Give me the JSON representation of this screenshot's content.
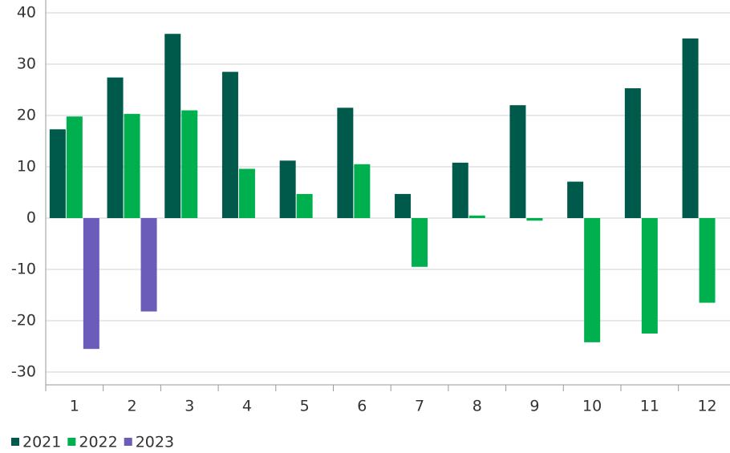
{
  "chart_data": {
    "type": "bar",
    "categories": [
      "1",
      "2",
      "3",
      "4",
      "5",
      "6",
      "7",
      "8",
      "9",
      "10",
      "11",
      "12"
    ],
    "series": [
      {
        "name": "2021",
        "color": "#005a4b",
        "values": [
          17.3,
          27.4,
          35.9,
          28.5,
          11.2,
          21.5,
          4.7,
          10.8,
          22,
          7.1,
          25.3,
          35
        ]
      },
      {
        "name": "2022",
        "color": "#00b04f",
        "values": [
          19.8,
          20.3,
          21,
          9.6,
          4.7,
          10.5,
          -9.5,
          0.5,
          -0.5,
          -24.2,
          -22.5,
          -16.5
        ]
      },
      {
        "name": "2023",
        "color": "#6a5cb8",
        "values": [
          -25.5,
          -18.2,
          null,
          null,
          null,
          null,
          null,
          null,
          null,
          null,
          null,
          null
        ]
      }
    ],
    "ylim": [
      -32.5,
      42.5
    ],
    "yticks": [
      -30,
      -20,
      -10,
      0,
      10,
      20,
      30,
      40
    ],
    "grid": true,
    "legend": "bottom-left"
  }
}
